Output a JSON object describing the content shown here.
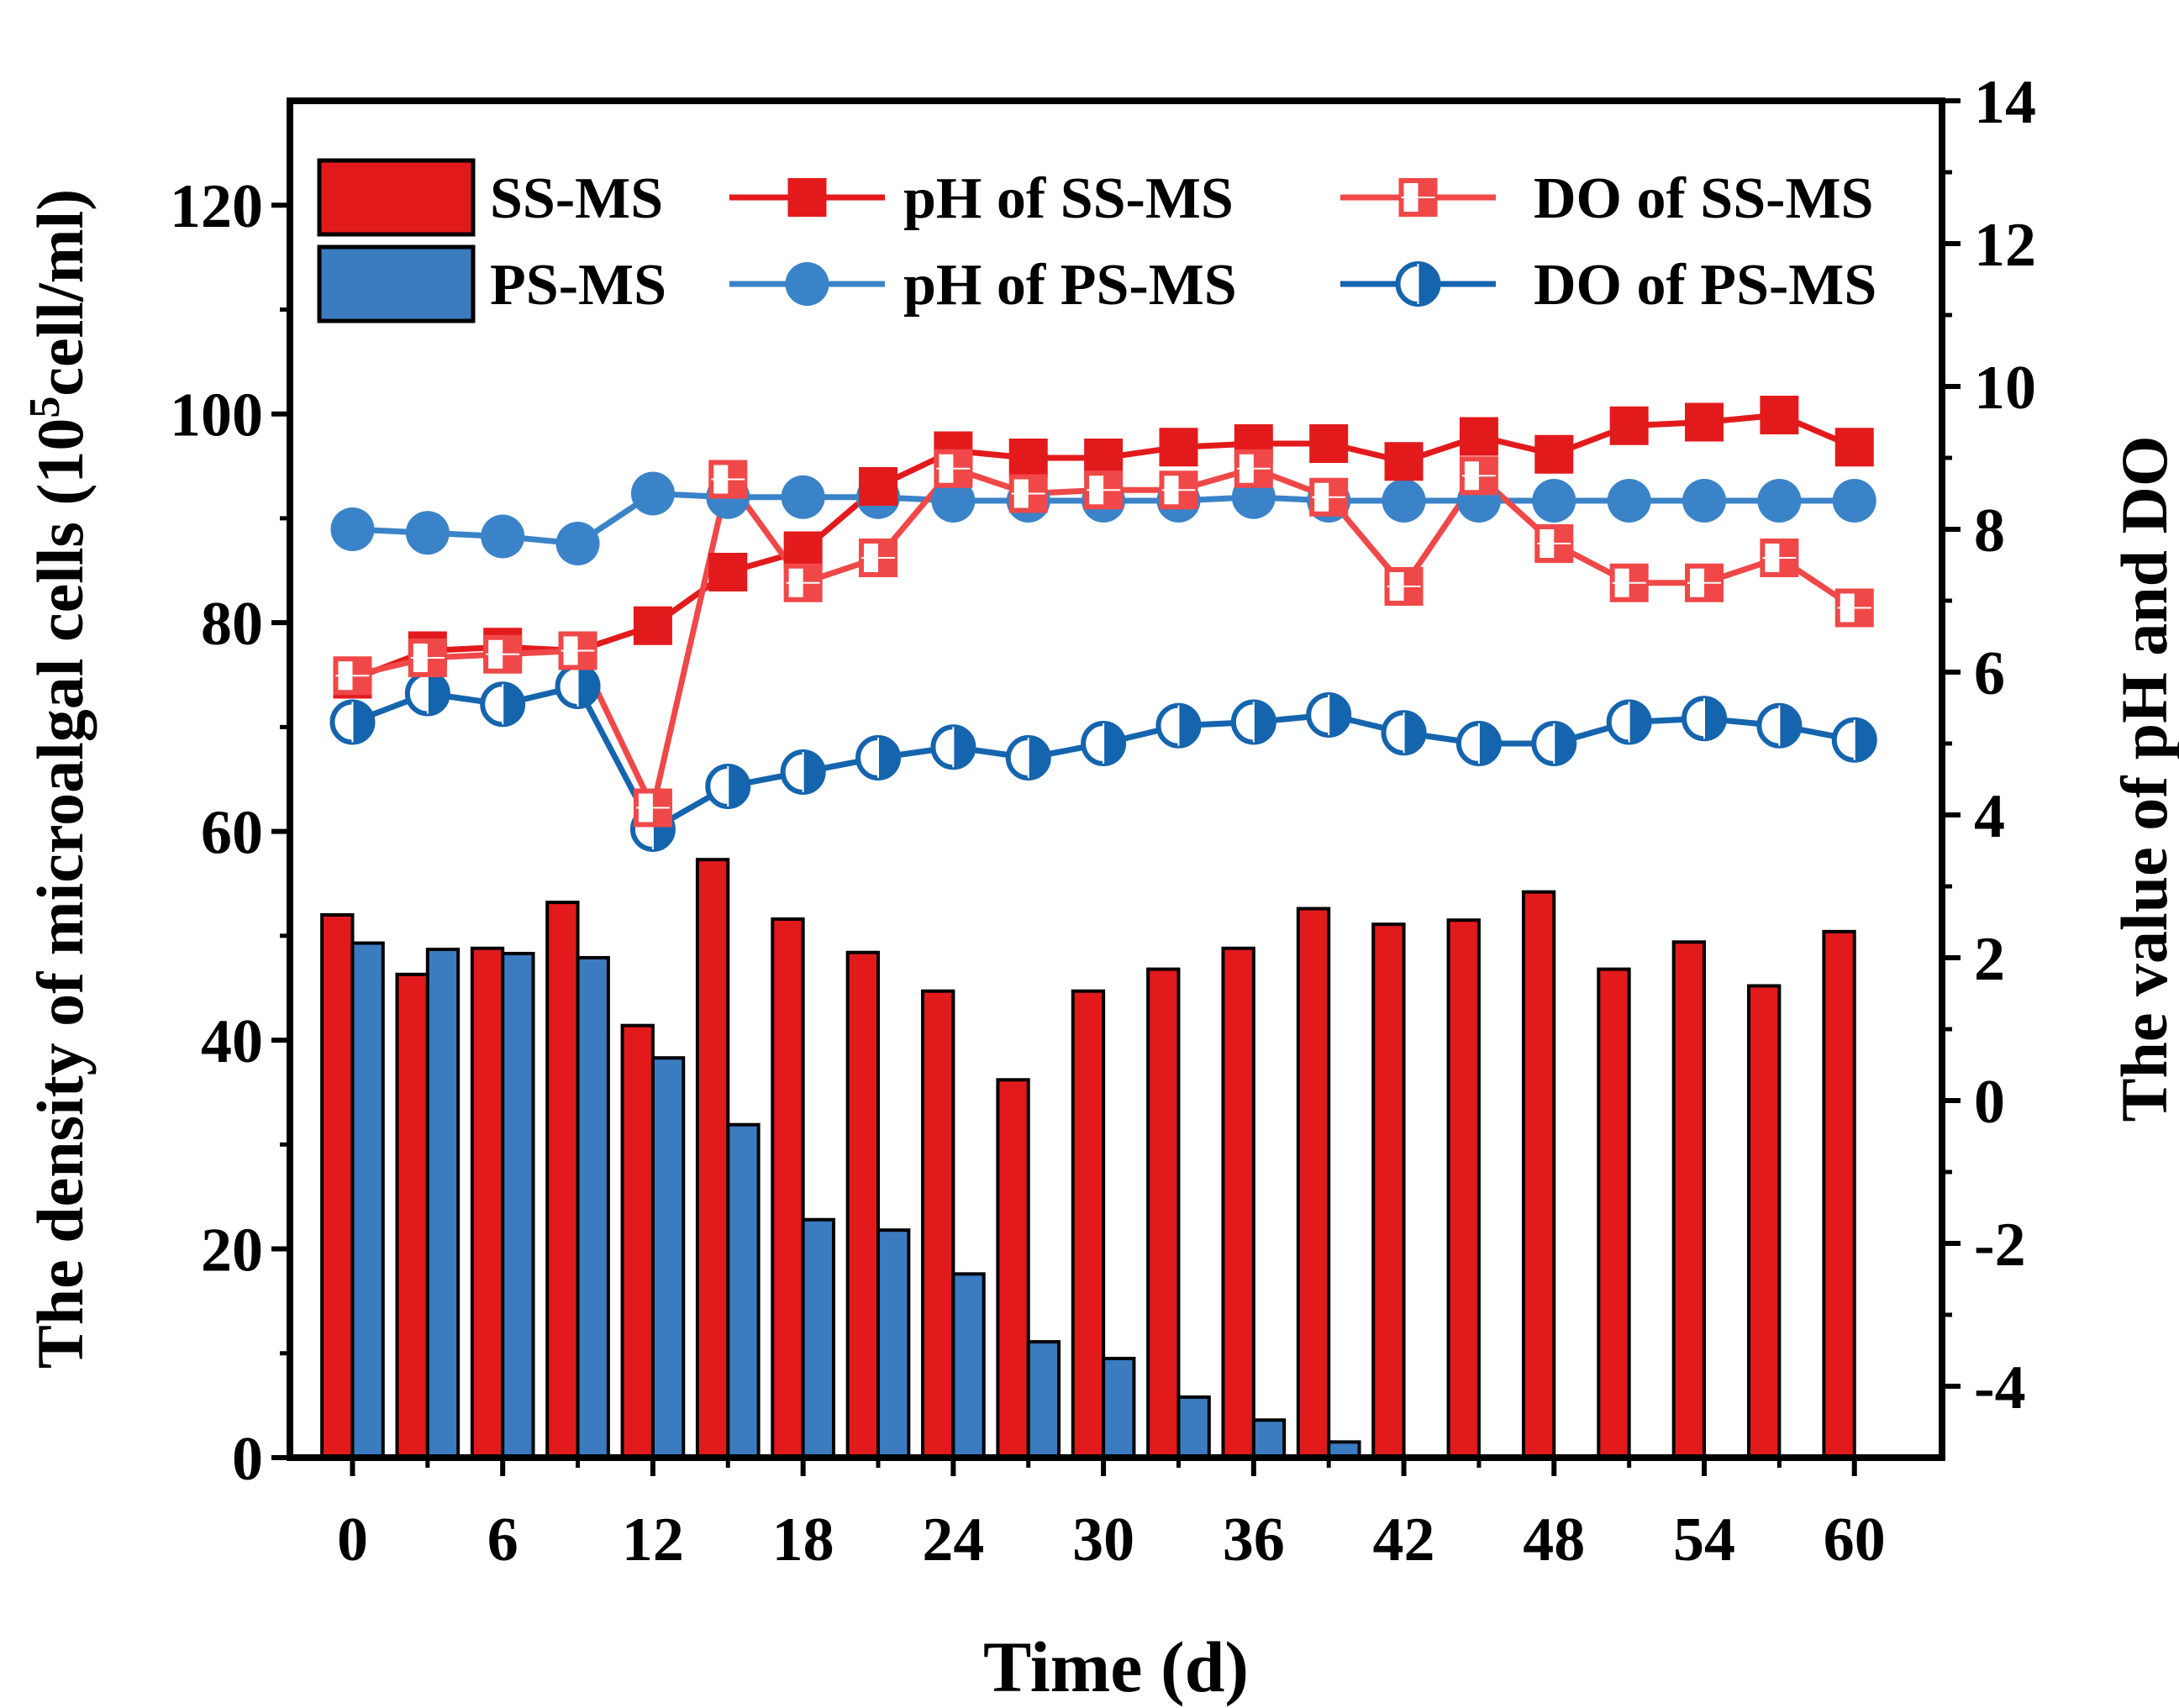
{
  "chart_data": {
    "type": "bar+line",
    "xlabel": "Time (d)",
    "ylabel_left_prefix": "The density of microalgal cells  (10",
    "ylabel_left_sup": "5",
    "ylabel_left_suffix": "cell/ml)",
    "ylabel_right": "The value of pH and DO",
    "xlim": [
      -2.5,
      63.5
    ],
    "x_ticks": [
      0,
      6,
      12,
      18,
      24,
      30,
      36,
      42,
      48,
      54,
      60
    ],
    "x_tick_labels": [
      "0",
      "6",
      "12",
      "18",
      "24",
      "30",
      "36",
      "42",
      "48",
      "54",
      "60"
    ],
    "ylim_left": [
      0,
      130
    ],
    "y_left_ticks": [
      0,
      20,
      40,
      60,
      80,
      100,
      120
    ],
    "y_left_tick_labels": [
      "0",
      "20",
      "40",
      "60",
      "80",
      "100",
      "120"
    ],
    "ylim_right": [
      -5,
      14
    ],
    "y_right_ticks": [
      -4,
      -2,
      0,
      2,
      4,
      6,
      8,
      10,
      12,
      14
    ],
    "y_right_tick_labels": [
      "-4",
      "-2",
      "0",
      "2",
      "4",
      "6",
      "8",
      "10",
      "12",
      "14"
    ],
    "x": [
      0,
      3,
      6,
      9,
      12,
      15,
      18,
      21,
      24,
      27,
      30,
      33,
      36,
      39,
      42,
      45,
      48,
      51,
      54,
      57,
      60
    ],
    "bar_series": [
      {
        "name": "SS-MS",
        "color": "#e31a1c",
        "values": [
          52,
          46.3,
          48.8,
          53.2,
          41.4,
          57.3,
          51.6,
          48.4,
          44.7,
          36.2,
          44.7,
          46.8,
          48.8,
          52.6,
          51.1,
          51.5,
          54.2,
          46.8,
          49.4,
          45.2,
          50.4
        ]
      },
      {
        "name": "PS-MS",
        "color": "#3b7bbf",
        "values": [
          49.3,
          48.7,
          48.3,
          47.9,
          38.3,
          31.9,
          22.8,
          21.8,
          17.6,
          11.1,
          9.5,
          5.8,
          3.6,
          1.5,
          0,
          0,
          0,
          0,
          0,
          0,
          0
        ]
      }
    ],
    "line_series": [
      {
        "name": "pH of SS-MS",
        "color": "#e31a1c",
        "marker": "square-filled",
        "values": [
          5.9,
          6.3,
          6.35,
          6.3,
          6.65,
          7.4,
          7.7,
          8.6,
          9.1,
          9.0,
          9.0,
          9.15,
          9.2,
          9.2,
          8.95,
          9.3,
          9.05,
          9.45,
          9.5,
          9.6,
          9.15
        ]
      },
      {
        "name": "pH of PS-MS",
        "color": "#3a83c8",
        "marker": "circle-filled",
        "values": [
          8.0,
          7.95,
          7.9,
          7.8,
          8.5,
          8.45,
          8.45,
          8.45,
          8.4,
          8.4,
          8.4,
          8.4,
          8.45,
          8.4,
          8.4,
          8.4,
          8.4,
          8.4,
          8.4,
          8.4,
          8.4
        ]
      },
      {
        "name": "DO of SS-MS",
        "color": "#f04848",
        "marker": "square-half",
        "values": [
          5.95,
          6.2,
          6.25,
          6.3,
          4.1,
          8.7,
          7.25,
          7.6,
          8.85,
          8.5,
          8.55,
          8.55,
          8.85,
          8.45,
          7.2,
          8.75,
          7.8,
          7.25,
          7.25,
          7.6,
          6.9
        ]
      },
      {
        "name": "DO of PS-MS",
        "color": "#1564ae",
        "marker": "circle-half",
        "values": [
          5.3,
          5.7,
          5.55,
          5.8,
          3.8,
          4.4,
          4.6,
          4.8,
          4.95,
          4.8,
          5.0,
          5.25,
          5.3,
          5.4,
          5.15,
          5.0,
          5.0,
          5.3,
          5.35,
          5.25,
          5.05
        ]
      }
    ],
    "legend": {
      "placement": "top",
      "entries": [
        "SS-MS",
        "PS-MS",
        "pH of SS-MS",
        "pH of PS-MS",
        "DO of SS-MS",
        "DO of PS-MS"
      ]
    }
  }
}
